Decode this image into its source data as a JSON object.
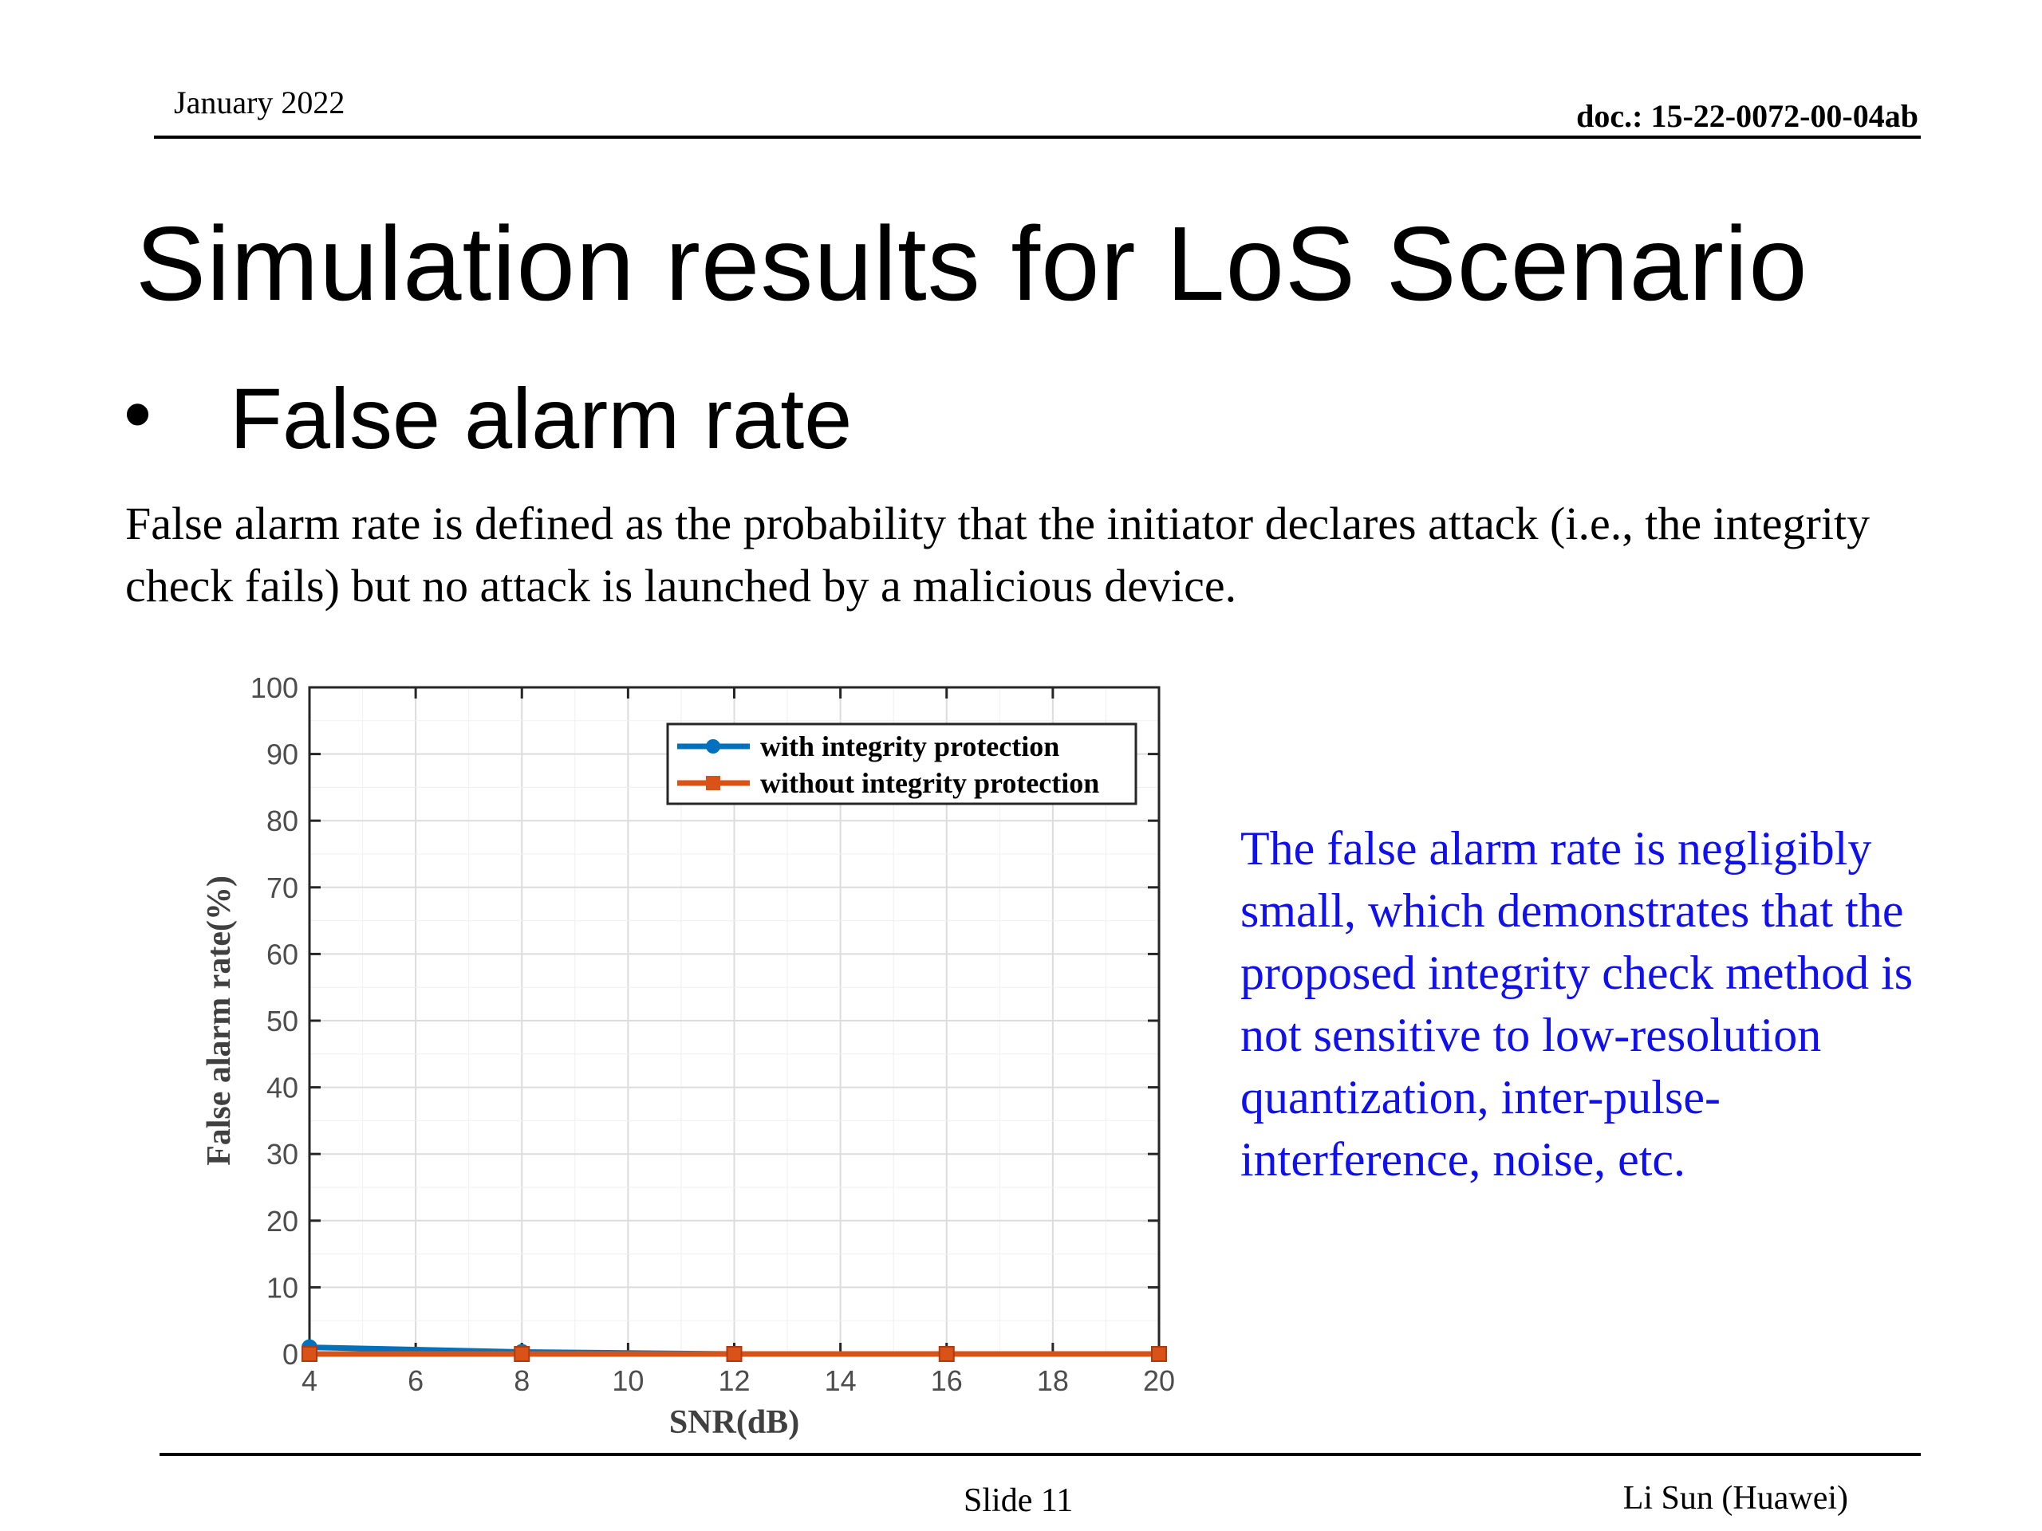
{
  "header": {
    "date": "January 2022",
    "doc_id": "doc.: 15-22-0072-00-04ab"
  },
  "slide": {
    "title": "Simulation results for LoS Scenario",
    "bullet": "False alarm rate",
    "definition": "False alarm rate is defined as the probability that the initiator declares attack (i.e., the integrity check fails) but no attack is launched by a malicious device.",
    "note": "The false alarm rate is negligibly small, which demonstrates that the proposed integrity check method is not sensitive to low-resolution quantization, inter-pulse-interference, noise, etc."
  },
  "footer": {
    "slide_label": "Slide 11",
    "author": "Li Sun (Huawei)"
  },
  "colors": {
    "series_blue": "#0072bd",
    "series_orange": "#d95319",
    "note_text": "#1010ee"
  },
  "chart_data": {
    "type": "line",
    "xlabel": "SNR(dB)",
    "ylabel": "False alarm rate(%)",
    "xlim": [
      4,
      20
    ],
    "ylim": [
      0,
      100
    ],
    "xticks": [
      4,
      6,
      8,
      10,
      12,
      14,
      16,
      18,
      20
    ],
    "yticks": [
      0,
      10,
      20,
      30,
      40,
      50,
      60,
      70,
      80,
      90,
      100
    ],
    "grid": true,
    "legend_position": "top-right",
    "series": [
      {
        "name": "with integrity protection",
        "marker": "circle",
        "color": "#0072bd",
        "x": [
          4,
          8,
          12,
          16,
          20
        ],
        "y": [
          1.0,
          0.3,
          0.0,
          0.0,
          0.0
        ]
      },
      {
        "name": "without integrity protection",
        "marker": "square",
        "color": "#d95319",
        "x": [
          4,
          8,
          12,
          16,
          20
        ],
        "y": [
          0.0,
          0.0,
          0.0,
          0.0,
          0.0
        ]
      }
    ]
  }
}
